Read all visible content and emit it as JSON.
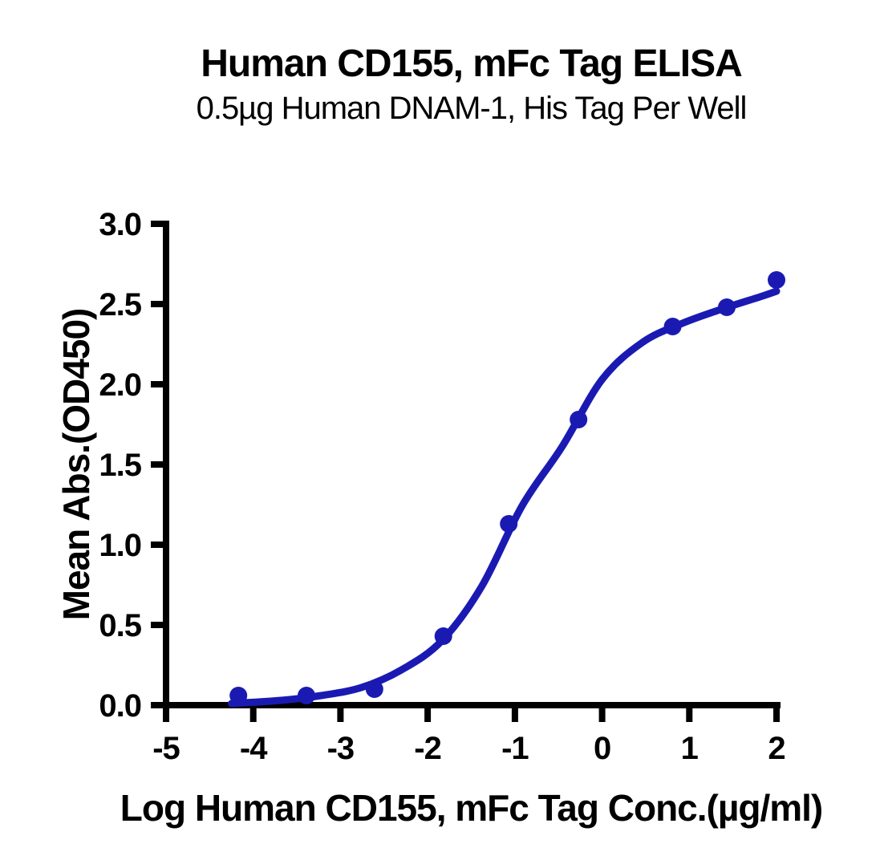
{
  "chart_data": {
    "type": "scatter",
    "title": "Human CD155, mFc Tag ELISA",
    "subtitle": "0.5µg Human DNAM-1, His Tag Per Well",
    "xlabel": "Log Human CD155, mFc Tag Conc.(µg/ml)",
    "ylabel": "Mean Abs.(OD450)",
    "xlim": [
      -5,
      2
    ],
    "ylim": [
      0,
      3
    ],
    "x_ticks": [
      -5,
      -4,
      -3,
      -2,
      -1,
      0,
      1,
      2
    ],
    "x_tick_labels": [
      "-5",
      "-4",
      "-3",
      "-2",
      "-1",
      "0",
      "1",
      "2"
    ],
    "y_ticks": [
      0,
      0.5,
      1,
      1.5,
      2,
      2.5,
      3
    ],
    "y_tick_labels": [
      "0.0",
      "0.5",
      "1.0",
      "1.5",
      "2.0",
      "2.5",
      "3.0"
    ],
    "grid": false,
    "legend": false,
    "axis_color": "#000000",
    "point_color": "#1a1ab3",
    "curve_color": "#1a1ab3",
    "marker_radius": 11,
    "curve_stroke_width": 9,
    "axis_stroke_width": 8,
    "series": [
      {
        "name": "Mean Abs. (OD450) data points",
        "type": "scatter",
        "x": [
          -4.17,
          -3.39,
          -2.61,
          -1.82,
          -1.07,
          -0.27,
          0.81,
          1.43,
          2.0
        ],
        "y": [
          0.06,
          0.06,
          0.1,
          0.43,
          1.13,
          1.78,
          2.36,
          2.48,
          2.65
        ]
      },
      {
        "name": "4PL fit curve",
        "type": "line",
        "x": [
          -4.25,
          -3.68,
          -3.22,
          -2.76,
          -2.3,
          -1.84,
          -1.38,
          -0.92,
          -0.46,
          0.0,
          0.46,
          0.92,
          1.38,
          1.84,
          2.0
        ],
        "y": [
          0.01,
          0.03,
          0.06,
          0.11,
          0.22,
          0.4,
          0.74,
          1.24,
          1.61,
          2.03,
          2.26,
          2.38,
          2.47,
          2.55,
          2.58
        ]
      }
    ]
  }
}
